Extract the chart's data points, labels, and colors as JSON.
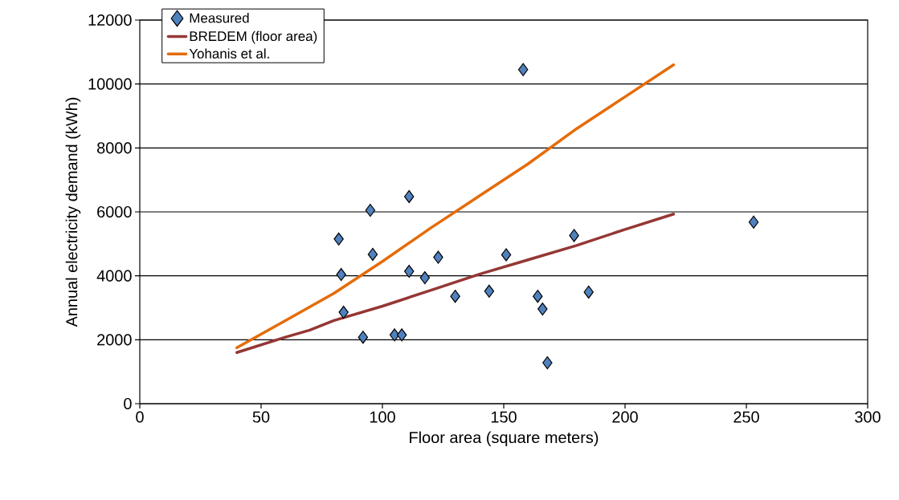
{
  "chart_data": {
    "type": "scatter",
    "xlabel": "Floor area (square meters)",
    "ylabel": "Annual electricity demand (kWh)",
    "xlim": [
      0,
      300
    ],
    "xticks": [
      0,
      50,
      100,
      150,
      200,
      250,
      300
    ],
    "ylim": [
      0,
      12000
    ],
    "yticks": [
      0,
      2000,
      4000,
      6000,
      8000,
      10000,
      12000
    ],
    "grid": "y",
    "legend": "top left",
    "series": [
      {
        "name": "Measured",
        "marker": "diamond",
        "color": "#4f81bd",
        "x": [
          82,
          83,
          84,
          92,
          95,
          96,
          105,
          108,
          111,
          111,
          117.5,
          123,
          130,
          144,
          151,
          158,
          164,
          166,
          168,
          179,
          185,
          253
        ],
        "values": [
          5150,
          4040,
          2860,
          2080,
          6050,
          4670,
          2150,
          2150,
          6480,
          4140,
          3940,
          4580,
          3360,
          3520,
          4660,
          10450,
          3360,
          2960,
          1280,
          5260,
          3490,
          5680
        ]
      },
      {
        "name": "BREDEM (floor area)",
        "type": "line",
        "marker": "none",
        "color": "#953735",
        "x": [
          40,
          60,
          70,
          80,
          100,
          120,
          140,
          160,
          180,
          200,
          220
        ],
        "values": [
          1600,
          2080,
          2300,
          2600,
          3050,
          3550,
          4050,
          4500,
          4950,
          5450,
          5930
        ]
      },
      {
        "name": "Yohanis et al.",
        "type": "line",
        "marker": "none",
        "color": "#e46c0a",
        "x": [
          40,
          60,
          80,
          100,
          120,
          140,
          160,
          180,
          200,
          220
        ],
        "values": [
          1750,
          2600,
          3450,
          4450,
          5500,
          6500,
          7500,
          8600,
          9600,
          10600
        ]
      }
    ]
  }
}
